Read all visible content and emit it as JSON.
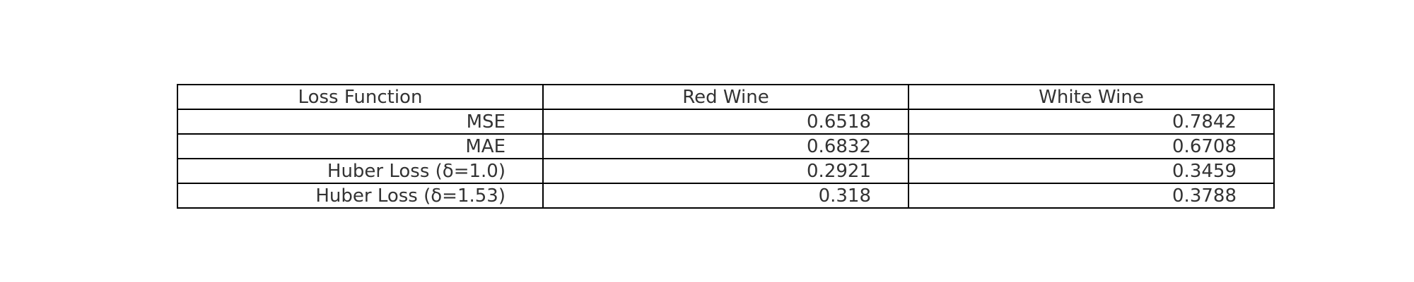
{
  "chart_data": {
    "type": "table",
    "columns": [
      "Loss Function",
      "Red Wine",
      "White Wine"
    ],
    "rows": [
      [
        "MSE",
        "0.6518",
        "0.7842"
      ],
      [
        "MAE",
        "0.6832",
        "0.6708"
      ],
      [
        "Huber Loss (δ=1.0)",
        "0.2921",
        "0.3459"
      ],
      [
        "Huber Loss (δ=1.53)",
        "0.318",
        "0.3788"
      ]
    ],
    "values": {
      "Red Wine": [
        0.6518,
        0.6832,
        0.2921,
        0.318
      ],
      "White Wine": [
        0.7842,
        0.6708,
        0.3459,
        0.3788
      ]
    }
  }
}
